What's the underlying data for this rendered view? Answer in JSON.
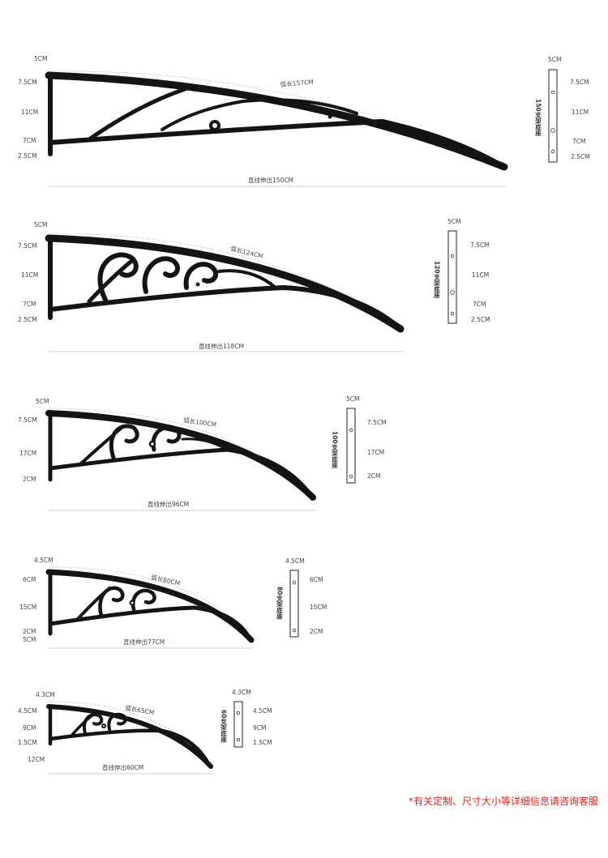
{
  "products": [
    {
      "id": "150",
      "side_labels": [
        "5CM",
        "7.5CM",
        "11CM",
        "7CM",
        "2.5CM"
      ],
      "arc_label": "弧长157CM",
      "span_label": "直线伸出150CM",
      "base": {
        "title": "150支架底座",
        "top": "5CM",
        "labels": [
          "7.5CM",
          "11CM",
          "7CM",
          "2.5CM"
        ]
      }
    },
    {
      "id": "120",
      "side_labels": [
        "5CM",
        "7.5CM",
        "11CM",
        "7CM",
        "2.5CM"
      ],
      "arc_label": "弧长124CM",
      "span_label": "直线伸出118CM",
      "base": {
        "title": "120支架底座",
        "top": "5CM",
        "labels": [
          "7.5CM",
          "11CM",
          "7CM",
          "2.5CM"
        ]
      }
    },
    {
      "id": "100",
      "side_labels": [
        "5CM",
        "7.5CM",
        "17CM",
        "2CM"
      ],
      "arc_label": "弧长100CM",
      "span_label": "直线伸出96CM",
      "base": {
        "title": "100支架底座",
        "top": "5CM",
        "labels": [
          "7.5CM",
          "17CM",
          "2CM"
        ]
      }
    },
    {
      "id": "80",
      "side_labels": [
        "4.5CM",
        "6CM",
        "15CM",
        "2CM",
        "5CM"
      ],
      "arc_label": "弧长80CM",
      "span_label": "直线伸出77CM",
      "base": {
        "title": "80支架底座",
        "top": "4.5CM",
        "labels": [
          "6CM",
          "15CM",
          "2CM"
        ]
      }
    },
    {
      "id": "60",
      "side_labels": [
        "4.3CM",
        "4.5CM",
        "9CM",
        "1.5CM",
        "12CM"
      ],
      "arc_label": "弧长65CM",
      "span_label": "直线伸出60CM",
      "base": {
        "title": "60支架底座",
        "top": "4.3CM",
        "labels": [
          "4.5CM",
          "9CM",
          "1.5CM"
        ]
      }
    }
  ],
  "footnote": "*有关定制、尺寸大小等详细信息请咨询客服",
  "colors": {
    "bracket": "#141414",
    "footnote": "#e0201a",
    "dimension_line": "#bbbbbb"
  }
}
